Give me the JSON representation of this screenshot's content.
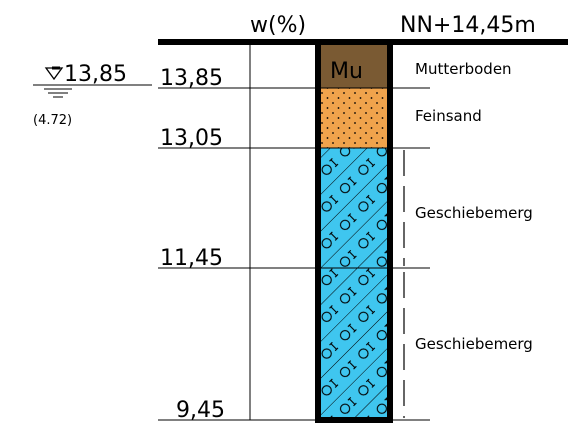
{
  "header": {
    "moisture_axis_label": "w(%)",
    "ground_level_label": "NN+14,45m"
  },
  "groundwater": {
    "level": "13,85",
    "depth": "(4.72)"
  },
  "elevation_marks": [
    "13,85",
    "13,05",
    "11,45",
    "9,45"
  ],
  "layers": [
    {
      "code": "Mu",
      "name": "Mutterboden",
      "fill": "#7a5a33"
    },
    {
      "code": "",
      "name": "Feinsand",
      "fill": "#f0a34c"
    },
    {
      "code": "",
      "name": "Geschiebemerg",
      "fill": "#3fc6ef"
    },
    {
      "code": "",
      "name": "Geschiebemerg",
      "fill": "#3fc6ef"
    }
  ]
}
